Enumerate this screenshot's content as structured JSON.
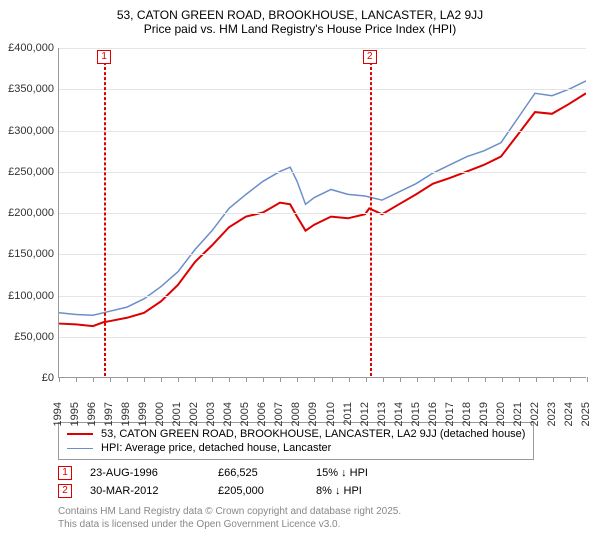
{
  "title_line1": "53, CATON GREEN ROAD, BROOKHOUSE, LANCASTER, LA2 9JJ",
  "title_line2": "Price paid vs. HM Land Registry's House Price Index (HPI)",
  "chart": {
    "type": "line",
    "background_color": "#ffffff",
    "grid_color": "#e5e5e5",
    "axis_color": "#999999",
    "x": {
      "min": 1994,
      "max": 2025,
      "tick_step": 1,
      "label_fontsize": 11,
      "label_rotation": -90
    },
    "y": {
      "min": 0,
      "max": 400000,
      "tick_step": 50000,
      "tick_labels": [
        "£0",
        "£50,000",
        "£100,000",
        "£150,000",
        "£200,000",
        "£250,000",
        "£300,000",
        "£350,000",
        "£400,000"
      ],
      "label_fontsize": 11
    },
    "series": [
      {
        "name": "53, CATON GREEN ROAD, BROOKHOUSE, LANCASTER, LA2 9JJ (detached house)",
        "color": "#dd0000",
        "width": 2,
        "points_by_year": {
          "1994": 65000,
          "1995": 64000,
          "1996": 62000,
          "1996.6": 66525,
          "1997": 68000,
          "1998": 72000,
          "1999": 78000,
          "2000": 92000,
          "2001": 112000,
          "2002": 140000,
          "2003": 160000,
          "2004": 182000,
          "2005": 195000,
          "2006": 200000,
          "2007": 212000,
          "2007.6": 210000,
          "2008": 195000,
          "2008.5": 178000,
          "2009": 185000,
          "2010": 195000,
          "2011": 193000,
          "2012": 198000,
          "2012.25": 205000,
          "2013": 198000,
          "2014": 210000,
          "2015": 222000,
          "2016": 235000,
          "2017": 242000,
          "2018": 250000,
          "2019": 258000,
          "2020": 268000,
          "2021": 295000,
          "2022": 322000,
          "2023": 320000,
          "2024": 332000,
          "2025": 345000
        }
      },
      {
        "name": "HPI: Average price, detached house, Lancaster",
        "color": "#6b8fc9",
        "width": 1.5,
        "points_by_year": {
          "1994": 78000,
          "1995": 76000,
          "1996": 75000,
          "1997": 80000,
          "1998": 85000,
          "1999": 95000,
          "2000": 110000,
          "2001": 128000,
          "2002": 155000,
          "2003": 178000,
          "2004": 205000,
          "2005": 222000,
          "2006": 238000,
          "2007": 250000,
          "2007.6": 255000,
          "2008": 238000,
          "2008.5": 210000,
          "2009": 218000,
          "2010": 228000,
          "2011": 222000,
          "2012": 220000,
          "2013": 215000,
          "2014": 225000,
          "2015": 235000,
          "2016": 248000,
          "2017": 258000,
          "2018": 268000,
          "2019": 275000,
          "2020": 285000,
          "2021": 315000,
          "2022": 345000,
          "2023": 342000,
          "2024": 350000,
          "2025": 360000
        }
      }
    ],
    "markers": [
      {
        "id": "1",
        "year": 1996.65,
        "box_top": true
      },
      {
        "id": "2",
        "year": 2012.25,
        "box_top": true
      }
    ]
  },
  "legend": {
    "border_color": "#999999",
    "rows": [
      {
        "color": "#dd0000",
        "width": 2,
        "label": "53, CATON GREEN ROAD, BROOKHOUSE, LANCASTER, LA2 9JJ (detached house)"
      },
      {
        "color": "#6b8fc9",
        "width": 1.5,
        "label": "HPI: Average price, detached house, Lancaster"
      }
    ]
  },
  "annotations": [
    {
      "id": "1",
      "date": "23-AUG-1996",
      "price": "£66,525",
      "pct": "15% ↓ HPI"
    },
    {
      "id": "2",
      "date": "30-MAR-2012",
      "price": "£205,000",
      "pct": "8% ↓ HPI"
    }
  ],
  "footer": {
    "line1": "Contains HM Land Registry data © Crown copyright and database right 2025.",
    "line2": "This data is licensed under the Open Government Licence v3.0."
  }
}
